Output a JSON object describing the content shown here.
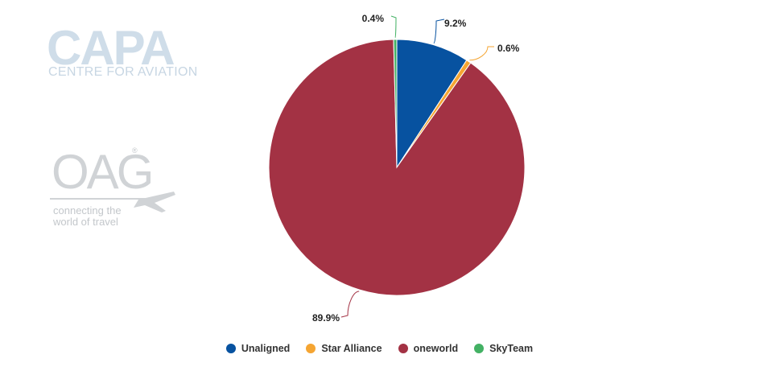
{
  "watermarks": {
    "capa_word": "CAPA",
    "capa_sub": "CENTRE FOR AVIATION",
    "oag_word": "OAG",
    "oag_registered": "®",
    "oag_tagline_1": "connecting the",
    "oag_tagline_2": "world of travel"
  },
  "chart_data": {
    "type": "pie",
    "title": "",
    "series": [
      {
        "name": "Unaligned",
        "value": 9.2,
        "label": "9.2%",
        "color": "#0752a0"
      },
      {
        "name": "Star Alliance",
        "value": 0.6,
        "label": "0.6%",
        "color": "#f5a532"
      },
      {
        "name": "oneworld",
        "value": 89.9,
        "label": "89.9%",
        "color": "#a33244"
      },
      {
        "name": "SkyTeam",
        "value": 0.4,
        "label": "0.4%",
        "color": "#43b164"
      }
    ],
    "legend_position": "bottom"
  }
}
